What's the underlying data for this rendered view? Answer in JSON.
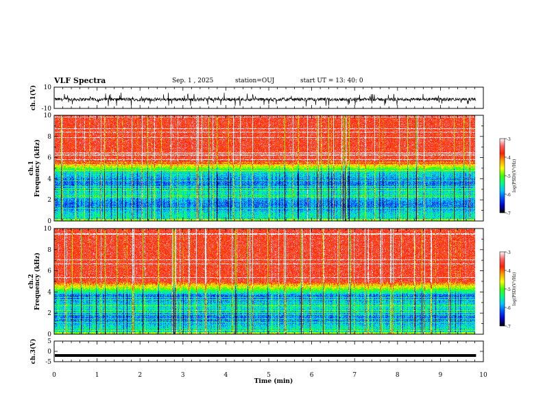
{
  "header": {
    "title": "VLF Spectra",
    "date": "Sep. 1 , 2025",
    "station": "station=OUJ",
    "start": "start  UT  =   13: 40: 0"
  },
  "colors": {
    "trace": "#000000",
    "colormap": [
      "#000000",
      "#0000c8",
      "#0050ff",
      "#00c8ff",
      "#00ff80",
      "#40ff00",
      "#ffff00",
      "#ffa000",
      "#ff2000",
      "#ff6060",
      "#ffffff"
    ]
  },
  "chart_data": [
    {
      "type": "line",
      "ylabel": "ch.1(V)",
      "ylim": [
        -10,
        10
      ],
      "yticks": [
        "10",
        "-10"
      ],
      "x_range_min": [
        0,
        9.83
      ],
      "baseline": -1,
      "note_series": "waveform oscillating mostly between -3 and 0 V with spikes to about -8 V"
    },
    {
      "type": "heatmap",
      "ylabel": "Frequency (kHz)",
      "channel_label": "ch.1",
      "ylim": [
        0,
        10
      ],
      "yticks": [
        "0",
        "2",
        "4",
        "6",
        "8",
        "10"
      ],
      "x_range_min": [
        0,
        9.83
      ],
      "colorbar": {
        "label": "log(PSD)(V²/Hz)",
        "range": [
          -7,
          -3
        ],
        "ticks": [
          "-3",
          "-4",
          "-5",
          "-6",
          "-7"
        ]
      },
      "boundary_khz": 4.5
    },
    {
      "type": "heatmap",
      "ylabel": "Frequency (kHz)",
      "channel_label": "ch.2",
      "ylim": [
        0,
        10
      ],
      "yticks": [
        "0",
        "2",
        "4",
        "6",
        "8",
        "10"
      ],
      "x_range_min": [
        0,
        9.83
      ],
      "colorbar": {
        "label": "log(PSD)(V²/Hz)",
        "range": [
          -7,
          -3
        ],
        "ticks": [
          "-3",
          "-4",
          "-5",
          "-6",
          "-7"
        ]
      },
      "boundary_khz": 3.8
    },
    {
      "type": "line",
      "ylabel": "ch.3(V)",
      "ylim": [
        -5,
        5
      ],
      "yticks": [
        "5",
        "0",
        "-5"
      ],
      "x_range_min": [
        0,
        9.83
      ],
      "baseline": -2
    }
  ],
  "xaxis": {
    "label": "Time (min)",
    "range": [
      0,
      10
    ],
    "ticks": [
      "0",
      "1",
      "2",
      "3",
      "4",
      "5",
      "6",
      "7",
      "8",
      "9",
      "10"
    ]
  }
}
